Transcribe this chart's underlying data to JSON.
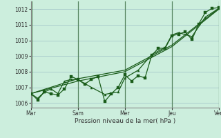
{
  "xlabel": "Pression niveau de la mer( hPa )",
  "bg_color": "#cceedd",
  "grid_color": "#aacccc",
  "line_color": "#1a5c1a",
  "vline_color": "#336633",
  "ylim": [
    1005.7,
    1012.5
  ],
  "yticks": [
    1006,
    1007,
    1008,
    1009,
    1010,
    1011,
    1012
  ],
  "day_labels": [
    "Mar",
    "Sam",
    "Mer",
    "Jeu",
    "Ven"
  ],
  "day_positions": [
    0,
    3.5,
    7,
    10.5,
    14
  ],
  "vline_positions": [
    0.05,
    3.5,
    7,
    10.5,
    14.0
  ],
  "line1_x": [
    0,
    0.5,
    1.0,
    1.5,
    2.0,
    2.5,
    3.0,
    3.5,
    4.0,
    4.5,
    5.0,
    5.5,
    6.0,
    6.5,
    7.0,
    7.5,
    8.0,
    8.5,
    9.0,
    9.5,
    10.0,
    10.5,
    11.0,
    11.5,
    12.0,
    12.5,
    13.0,
    13.5,
    14.0
  ],
  "line1_y": [
    1006.6,
    1006.2,
    1006.7,
    1006.6,
    1006.5,
    1006.9,
    1007.7,
    1007.5,
    1007.2,
    1007.5,
    1007.7,
    1006.1,
    1006.6,
    1007.0,
    1007.8,
    1007.4,
    1007.75,
    1007.6,
    1009.05,
    1009.5,
    1009.5,
    1010.3,
    1010.4,
    1010.55,
    1010.05,
    1011.05,
    1011.8,
    1012.05,
    1012.1
  ],
  "line2_x": [
    0,
    0.5,
    1.0,
    1.5,
    2.0,
    2.5,
    3.0,
    3.5,
    4.5,
    5.5,
    6.5,
    7.0,
    8.0,
    9.0,
    10.0,
    10.5,
    11.0,
    12.0,
    13.0,
    14.0
  ],
  "line2_y": [
    1006.6,
    1006.3,
    1006.7,
    1006.9,
    1006.6,
    1007.4,
    1007.5,
    1007.5,
    1007.0,
    1006.55,
    1006.7,
    1007.6,
    1008.1,
    1009.1,
    1009.55,
    1010.35,
    1010.5,
    1010.25,
    1011.5,
    1012.05
  ],
  "line3_x": [
    0,
    3.5,
    7.0,
    10.5,
    14.0
  ],
  "line3_y": [
    1006.6,
    1007.55,
    1008.1,
    1009.7,
    1012.05
  ],
  "line4_x": [
    0,
    3.5,
    7.0,
    10.5,
    14.0
  ],
  "line4_y": [
    1006.6,
    1007.4,
    1008.0,
    1009.6,
    1012.0
  ]
}
